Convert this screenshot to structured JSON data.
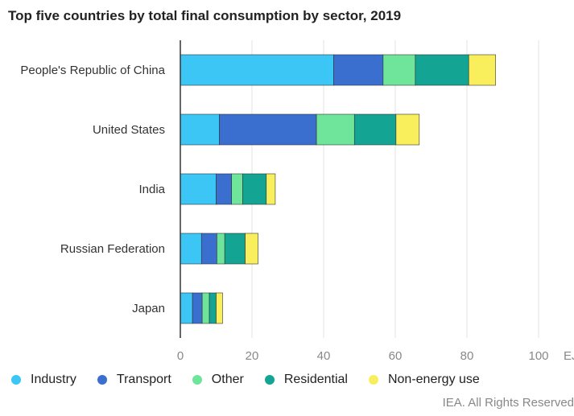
{
  "chart_data": {
    "type": "bar",
    "orientation": "horizontal",
    "stacked": true,
    "title": "Top five countries by total final consumption by sector, 2019",
    "categories": [
      "People's Republic of China",
      "United States",
      "India",
      "Russian Federation",
      "Japan"
    ],
    "series": [
      {
        "name": "Industry",
        "color": "#3cc6f5",
        "values": [
          42.8,
          10.9,
          10.0,
          5.9,
          3.4
        ]
      },
      {
        "name": "Transport",
        "color": "#3a6fcf",
        "values": [
          13.8,
          27.1,
          4.3,
          4.3,
          2.7
        ]
      },
      {
        "name": "Other",
        "color": "#6ee59a",
        "values": [
          9.0,
          10.6,
          3.1,
          2.2,
          2.0
        ]
      },
      {
        "name": "Residential",
        "color": "#13a493",
        "values": [
          14.9,
          11.6,
          6.6,
          5.7,
          1.9
        ]
      },
      {
        "name": "Non-energy use",
        "color": "#f9ef5c",
        "values": [
          7.5,
          6.5,
          2.5,
          3.6,
          1.8
        ]
      }
    ],
    "xlim": [
      0,
      100
    ],
    "xticks": [
      0,
      20,
      40,
      60,
      80,
      100
    ],
    "xunit": "EJ",
    "grid": true,
    "legend_placement": "bottom"
  },
  "footer": "IEA. All Rights Reserved"
}
